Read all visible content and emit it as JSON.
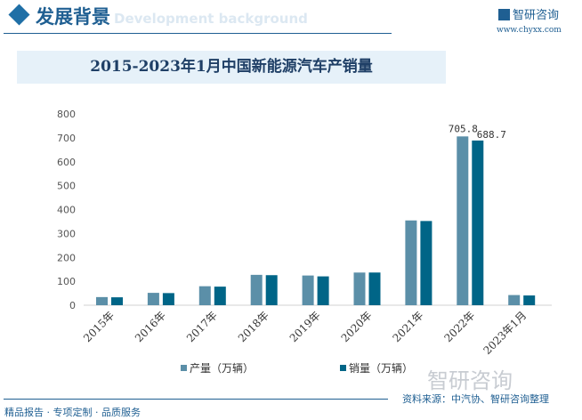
{
  "header": {
    "title": "发展背景",
    "subtitle": "Development background",
    "logo_text": "智研咨询",
    "url": "www.chyxx.com"
  },
  "watermark": "智研咨询",
  "footer": {
    "slogan": "精品报告 · 专项定制 · 品质服务",
    "source": "资料来源：中汽协、智研咨询整理"
  },
  "colors": {
    "production": "#5b8fa8",
    "sales": "#006587",
    "accent": "#1f5f92"
  },
  "chart_data": {
    "type": "bar",
    "title": "2015-2023年1月中国新能源汽车产销量",
    "categories": [
      "2015年",
      "2016年",
      "2017年",
      "2018年",
      "2019年",
      "2020年",
      "2021年",
      "2022年",
      "2023年1月"
    ],
    "series": [
      {
        "name": "产量（万辆）",
        "values": [
          34.0,
          51.7,
          79.4,
          127.0,
          124.2,
          136.6,
          354.5,
          705.8,
          42.5
        ]
      },
      {
        "name": "销量（万辆）",
        "values": [
          33.1,
          50.7,
          77.7,
          125.6,
          120.6,
          136.7,
          352.1,
          688.7,
          40.8
        ]
      }
    ],
    "data_labels": {
      "production_2022": "705.8",
      "sales_2022": "688.7"
    },
    "yticks": [
      "0",
      "100",
      "200",
      "300",
      "400",
      "500",
      "600",
      "700",
      "800"
    ],
    "ylim": [
      0,
      800
    ],
    "grid": false,
    "legend": "bottom"
  }
}
